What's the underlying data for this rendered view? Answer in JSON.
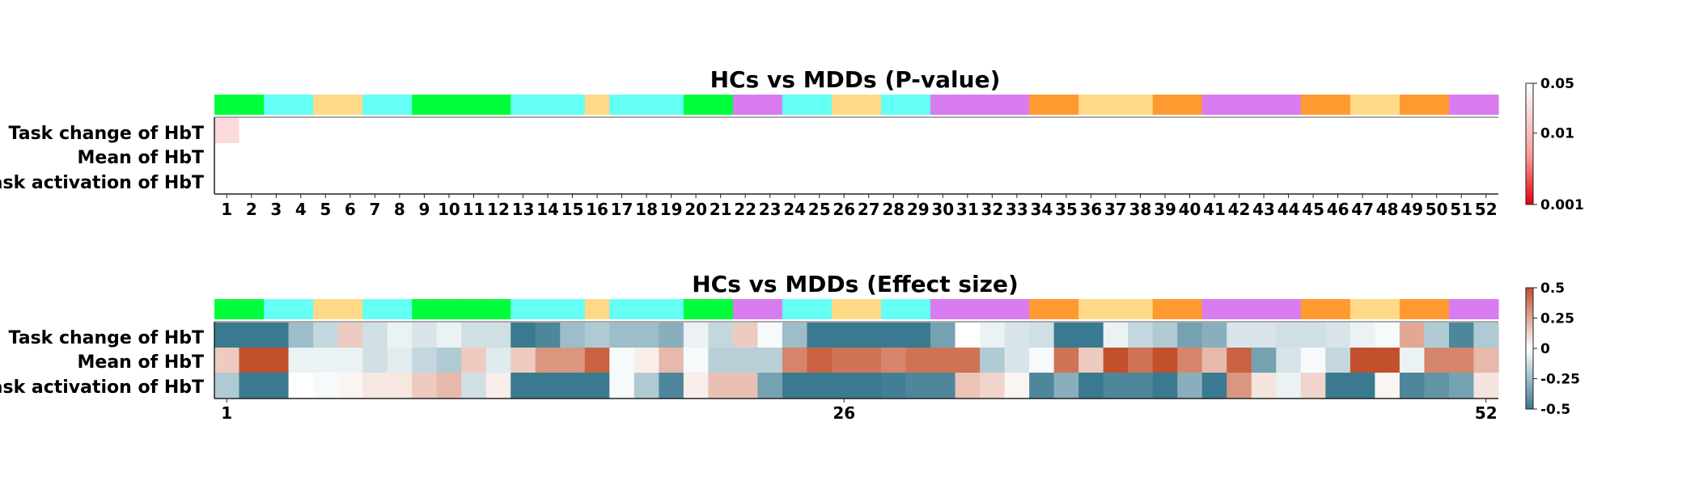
{
  "chart_data": [
    {
      "type": "heatmap",
      "title": "HCs vs MDDs (P-value)",
      "rows": [
        "Task change of HbT",
        "Mean of HbT",
        "Task activation of HbT"
      ],
      "columns": [
        1,
        2,
        3,
        4,
        5,
        6,
        7,
        8,
        9,
        10,
        11,
        12,
        13,
        14,
        15,
        16,
        17,
        18,
        19,
        20,
        21,
        22,
        23,
        24,
        25,
        26,
        27,
        28,
        29,
        30,
        31,
        32,
        33,
        34,
        35,
        36,
        37,
        38,
        39,
        40,
        41,
        42,
        43,
        44,
        45,
        46,
        47,
        48,
        49,
        50,
        51,
        52
      ],
      "x_ticks": [
        "1",
        "2",
        "3",
        "4",
        "5",
        "6",
        "7",
        "8",
        "9",
        "10",
        "11",
        "12",
        "13",
        "14",
        "15",
        "16",
        "17",
        "18",
        "19",
        "20",
        "21",
        "22",
        "23",
        "24",
        "25",
        "26",
        "27",
        "28",
        "29",
        "30",
        "31",
        "32",
        "33",
        "34",
        "35",
        "36",
        "37",
        "38",
        "39",
        "40",
        "41",
        "42",
        "43",
        "44",
        "45",
        "46",
        "47",
        "48",
        "49",
        "50",
        "51",
        "52"
      ],
      "cells": [
        {
          "row": 0,
          "col": 0,
          "p": 0.04
        }
      ],
      "value_note": "",
      "colorbar": {
        "scale": "log",
        "range": [
          0.001,
          0.05
        ],
        "ticks": [
          "0.05",
          "0.01",
          "0.001"
        ],
        "tick_values": [
          0.05,
          0.01,
          0.001
        ]
      },
      "region_colors": [
        "#00ff3b",
        "#00ff3b",
        "#64fff5",
        "#64fff5",
        "#ffd985",
        "#ffd985",
        "#64fff5",
        "#64fff5",
        "#00ff3b",
        "#00ff3b",
        "#00ff3b",
        "#00ff3b",
        "#64fff5",
        "#64fff5",
        "#64fff5",
        "#ffd985",
        "#64fff5",
        "#64fff5",
        "#64fff5",
        "#00ff3b",
        "#00ff3b",
        "#d97cf0",
        "#d97cf0",
        "#64fff5",
        "#64fff5",
        "#ffd985",
        "#ffd985",
        "#64fff5",
        "#64fff5",
        "#d97cf0",
        "#d97cf0",
        "#d97cf0",
        "#d97cf0",
        "#ff9a30",
        "#ff9a30",
        "#ffd985",
        "#ffd985",
        "#ffd985",
        "#ff9a30",
        "#ff9a30",
        "#d97cf0",
        "#d97cf0",
        "#d97cf0",
        "#d97cf0",
        "#ff9a30",
        "#ff9a30",
        "#ffd985",
        "#ffd985",
        "#ff9a30",
        "#ff9a30",
        "#d97cf0",
        "#d97cf0"
      ]
    },
    {
      "type": "heatmap",
      "title": "HCs vs MDDs (Effect size)",
      "rows": [
        "Task change of HbT",
        "Mean of HbT",
        "Task activation of HbT"
      ],
      "columns": [
        1,
        2,
        3,
        4,
        5,
        6,
        7,
        8,
        9,
        10,
        11,
        12,
        13,
        14,
        15,
        16,
        17,
        18,
        19,
        20,
        21,
        22,
        23,
        24,
        25,
        26,
        27,
        28,
        29,
        30,
        31,
        32,
        33,
        34,
        35,
        36,
        37,
        38,
        39,
        40,
        41,
        42,
        43,
        44,
        45,
        46,
        47,
        48,
        49,
        50,
        51,
        52
      ],
      "x_ticks": [
        "1",
        "26",
        "52"
      ],
      "x_tick_positions": [
        1,
        26,
        52
      ],
      "values": [
        [
          -0.5,
          -0.5,
          -0.5,
          -0.25,
          -0.15,
          0.15,
          -0.12,
          -0.05,
          -0.1,
          -0.05,
          -0.12,
          -0.12,
          -0.5,
          -0.45,
          -0.25,
          -0.2,
          -0.25,
          -0.25,
          -0.3,
          -0.05,
          -0.15,
          0.15,
          -0.02,
          -0.25,
          -0.5,
          -0.5,
          -0.5,
          -0.5,
          -0.5,
          -0.35,
          0.0,
          -0.05,
          -0.1,
          -0.12,
          -0.5,
          -0.5,
          -0.05,
          -0.15,
          -0.2,
          -0.35,
          -0.3,
          -0.1,
          -0.1,
          -0.12,
          -0.12,
          -0.1,
          -0.05,
          -0.02,
          0.25,
          -0.2,
          -0.45,
          -0.2
        ],
        [
          0.15,
          0.5,
          0.5,
          -0.05,
          -0.05,
          -0.05,
          -0.12,
          -0.07,
          -0.15,
          -0.2,
          0.15,
          -0.08,
          0.15,
          0.3,
          0.3,
          0.45,
          -0.02,
          0.05,
          0.2,
          -0.02,
          -0.18,
          -0.18,
          -0.18,
          0.35,
          0.45,
          0.4,
          0.4,
          0.35,
          0.4,
          0.4,
          0.4,
          -0.2,
          -0.1,
          -0.02,
          0.4,
          0.15,
          0.5,
          0.4,
          0.5,
          0.35,
          0.2,
          0.45,
          -0.35,
          -0.1,
          -0.02,
          -0.15,
          0.5,
          0.5,
          -0.05,
          0.35,
          0.35,
          0.2
        ],
        [
          -0.2,
          -0.5,
          -0.5,
          0.0,
          -0.02,
          0.03,
          0.07,
          0.07,
          0.15,
          0.2,
          -0.12,
          0.05,
          -0.5,
          -0.5,
          -0.5,
          -0.5,
          -0.02,
          -0.2,
          -0.45,
          0.05,
          0.18,
          0.18,
          -0.35,
          -0.5,
          -0.5,
          -0.5,
          -0.5,
          -0.48,
          -0.45,
          -0.45,
          0.17,
          0.12,
          0.03,
          -0.45,
          -0.3,
          -0.5,
          -0.45,
          -0.45,
          -0.5,
          -0.3,
          -0.5,
          0.3,
          0.08,
          -0.05,
          0.12,
          -0.5,
          -0.5,
          0.03,
          -0.45,
          -0.4,
          -0.35,
          0.08
        ]
      ],
      "colorbar": {
        "range": [
          -0.5,
          0.5
        ],
        "ticks": [
          "0.5",
          "0.25",
          "0",
          "-0.25",
          "-0.5"
        ],
        "tick_values": [
          0.5,
          0.25,
          0,
          -0.25,
          -0.5
        ]
      },
      "region_colors": [
        "#00ff3b",
        "#00ff3b",
        "#64fff5",
        "#64fff5",
        "#ffd985",
        "#ffd985",
        "#64fff5",
        "#64fff5",
        "#00ff3b",
        "#00ff3b",
        "#00ff3b",
        "#00ff3b",
        "#64fff5",
        "#64fff5",
        "#64fff5",
        "#ffd985",
        "#64fff5",
        "#64fff5",
        "#64fff5",
        "#00ff3b",
        "#00ff3b",
        "#d97cf0",
        "#d97cf0",
        "#64fff5",
        "#64fff5",
        "#ffd985",
        "#ffd985",
        "#64fff5",
        "#64fff5",
        "#d97cf0",
        "#d97cf0",
        "#d97cf0",
        "#d97cf0",
        "#ff9a30",
        "#ff9a30",
        "#ffd985",
        "#ffd985",
        "#ffd985",
        "#ff9a30",
        "#ff9a30",
        "#d97cf0",
        "#d97cf0",
        "#d97cf0",
        "#d97cf0",
        "#ff9a30",
        "#ff9a30",
        "#ffd985",
        "#ffd985",
        "#ff9a30",
        "#ff9a30",
        "#d97cf0",
        "#d97cf0"
      ]
    }
  ],
  "colors": {
    "pvalue_low": "#e8000b",
    "pvalue_high": "#ffffff",
    "effect_negative": "#3a7a90",
    "effect_zero": "#ffffff",
    "effect_positive": "#c3502c"
  }
}
